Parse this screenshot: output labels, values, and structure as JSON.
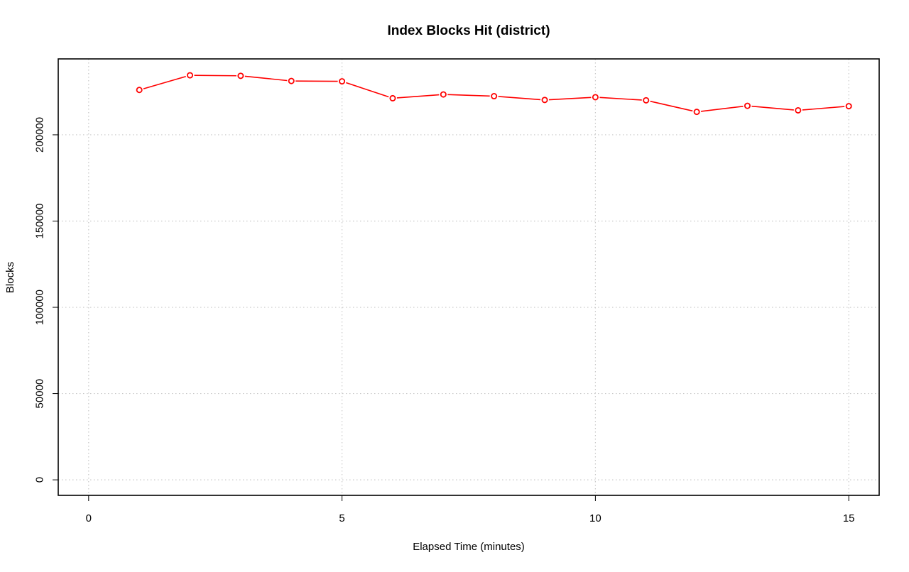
{
  "chart_data": {
    "type": "line",
    "title": "Index Blocks Hit (district)",
    "xlabel": "Elapsed Time (minutes)",
    "ylabel": "Blocks",
    "xlim": [
      -0.6,
      15.6
    ],
    "ylim": [
      -9000,
      244000
    ],
    "xticks": [
      0,
      5,
      10,
      15
    ],
    "xtick_labels": [
      "0",
      "5",
      "10",
      "15"
    ],
    "yticks": [
      0,
      50000,
      100000,
      150000,
      200000
    ],
    "ytick_labels": [
      "0",
      "50000",
      "100000",
      "150000",
      "200000"
    ],
    "grid": true,
    "x": [
      1,
      2,
      3,
      4,
      5,
      6,
      7,
      8,
      9,
      10,
      11,
      12,
      13,
      14,
      15
    ],
    "series": [
      {
        "values": [
          226000,
          234500,
          234200,
          231200,
          231000,
          221200,
          223400,
          222400,
          220200,
          221800,
          220000,
          213300,
          216800,
          214200,
          216600
        ],
        "color": "#ff0000",
        "marker": "open-circle"
      }
    ]
  }
}
